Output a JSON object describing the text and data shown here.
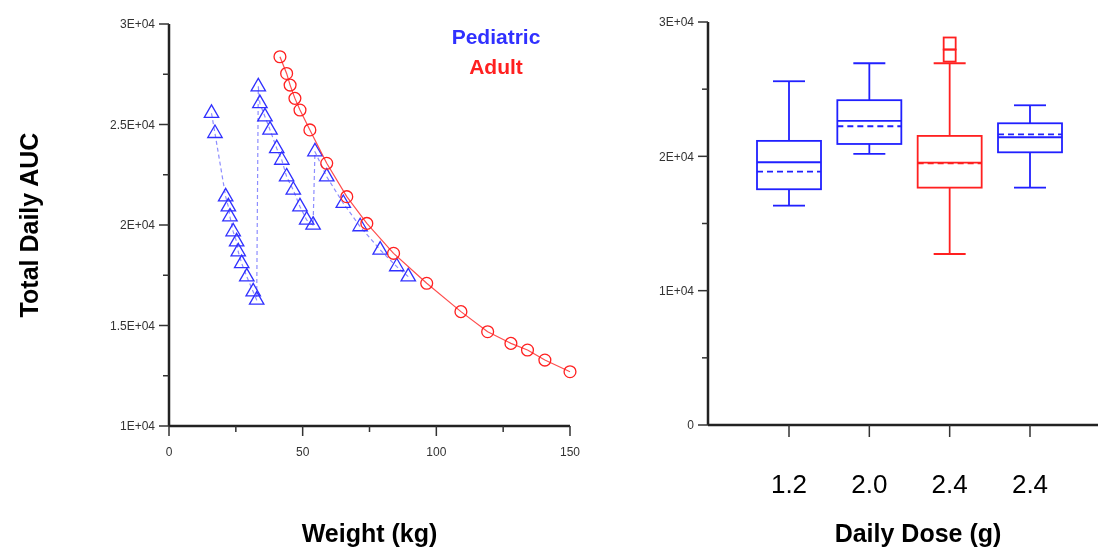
{
  "chart_data": [
    {
      "type": "line",
      "xlabel": "Weight (kg)",
      "ylabel": "Total Daily AUC",
      "xlim": [
        0,
        150
      ],
      "ylim": [
        10000,
        30000
      ],
      "xticks": [
        0,
        {
          "value": 25,
          "label": null
        },
        50,
        {
          "value": 75,
          "label": null
        },
        100,
        {
          "value": 125,
          "label": null
        },
        150
      ],
      "yticks": [
        {
          "value": 10000,
          "label": "1E+04"
        },
        {
          "value": 12500,
          "label": null
        },
        {
          "value": 15000,
          "label": "1.5E+04"
        },
        {
          "value": 17500,
          "label": null
        },
        {
          "value": 20000,
          "label": "2E+04"
        },
        {
          "value": 22500,
          "label": null
        },
        {
          "value": 25000,
          "label": "2.5E+04"
        },
        {
          "value": 27500,
          "label": null
        },
        {
          "value": 30000,
          "label": "3E+04"
        }
      ],
      "legend": "top right",
      "grid": false,
      "series": [
        {
          "name": "Pediatric",
          "color": "#3030ff",
          "marker": "triangle",
          "line_style": "dashed",
          "x": [
            15.9,
            17.2,
            21.2,
            22.2,
            22.8,
            24.0,
            25.3,
            25.9,
            27.2,
            29.1,
            31.5,
            32.8,
            33.4,
            34.0,
            35.9,
            37.8,
            40.3,
            42.2,
            44.0,
            46.5,
            49.0,
            51.5,
            53.9,
            54.6,
            59.0,
            65.2,
            71.5,
            79.0,
            85.2,
            89.5
          ],
          "values": [
            25560,
            24560,
            21410,
            20910,
            20410,
            19670,
            19170,
            18670,
            18090,
            17430,
            16680,
            16270,
            26880,
            26050,
            25390,
            24730,
            23810,
            23230,
            22400,
            21740,
            20910,
            20250,
            20000,
            23650,
            22400,
            21080,
            19920,
            18760,
            17930,
            17430
          ]
        },
        {
          "name": "Adult",
          "color": "#ff2020",
          "marker": "circle",
          "line_style": "solid",
          "x": [
            41.5,
            44.0,
            45.3,
            47.1,
            49.0,
            52.7,
            59.0,
            66.5,
            74.0,
            84.0,
            96.4,
            109.2,
            119.2,
            127.9,
            134.1,
            140.6,
            150
          ],
          "values": [
            28370,
            27540,
            26960,
            26300,
            25720,
            24730,
            23070,
            21410,
            20080,
            18590,
            17100,
            15690,
            14690,
            14110,
            13780,
            13280,
            12700
          ]
        }
      ]
    },
    {
      "type": "box",
      "xlabel": "Daily Dose (g)",
      "categories": [
        "1.2",
        "2.0",
        "2.4",
        "2.4"
      ],
      "colors": [
        "#2020ff",
        "#2020ff",
        "#ff2020",
        "#2020ff"
      ],
      "ylim": [
        0,
        30000
      ],
      "yticks": [
        0,
        {
          "value": 5000,
          "label": null
        },
        {
          "value": 10000,
          "label": "1E+04"
        },
        {
          "value": 15000,
          "label": null
        },
        {
          "value": 20000,
          "label": "2E+04"
        },
        {
          "value": 25000,
          "label": null
        },
        {
          "value": 30000,
          "label": "3E+04"
        }
      ],
      "grid": false,
      "boxes": [
        {
          "low": 16330,
          "q1": 17550,
          "median": 19560,
          "q3": 21150,
          "high": 25590,
          "mean": 18860
        },
        {
          "low": 20180,
          "q1": 20920,
          "median": 22640,
          "q3": 24180,
          "high": 26930,
          "mean": 22240
        },
        {
          "low": 12730,
          "q1": 17670,
          "median": 19530,
          "q3": 21520,
          "high": 26930,
          "mean": 19480,
          "outliers": [
            28400,
            27500
          ]
        },
        {
          "low": 17670,
          "q1": 20300,
          "median": 21420,
          "q3": 22460,
          "high": 23800,
          "mean": 21640
        }
      ]
    }
  ]
}
